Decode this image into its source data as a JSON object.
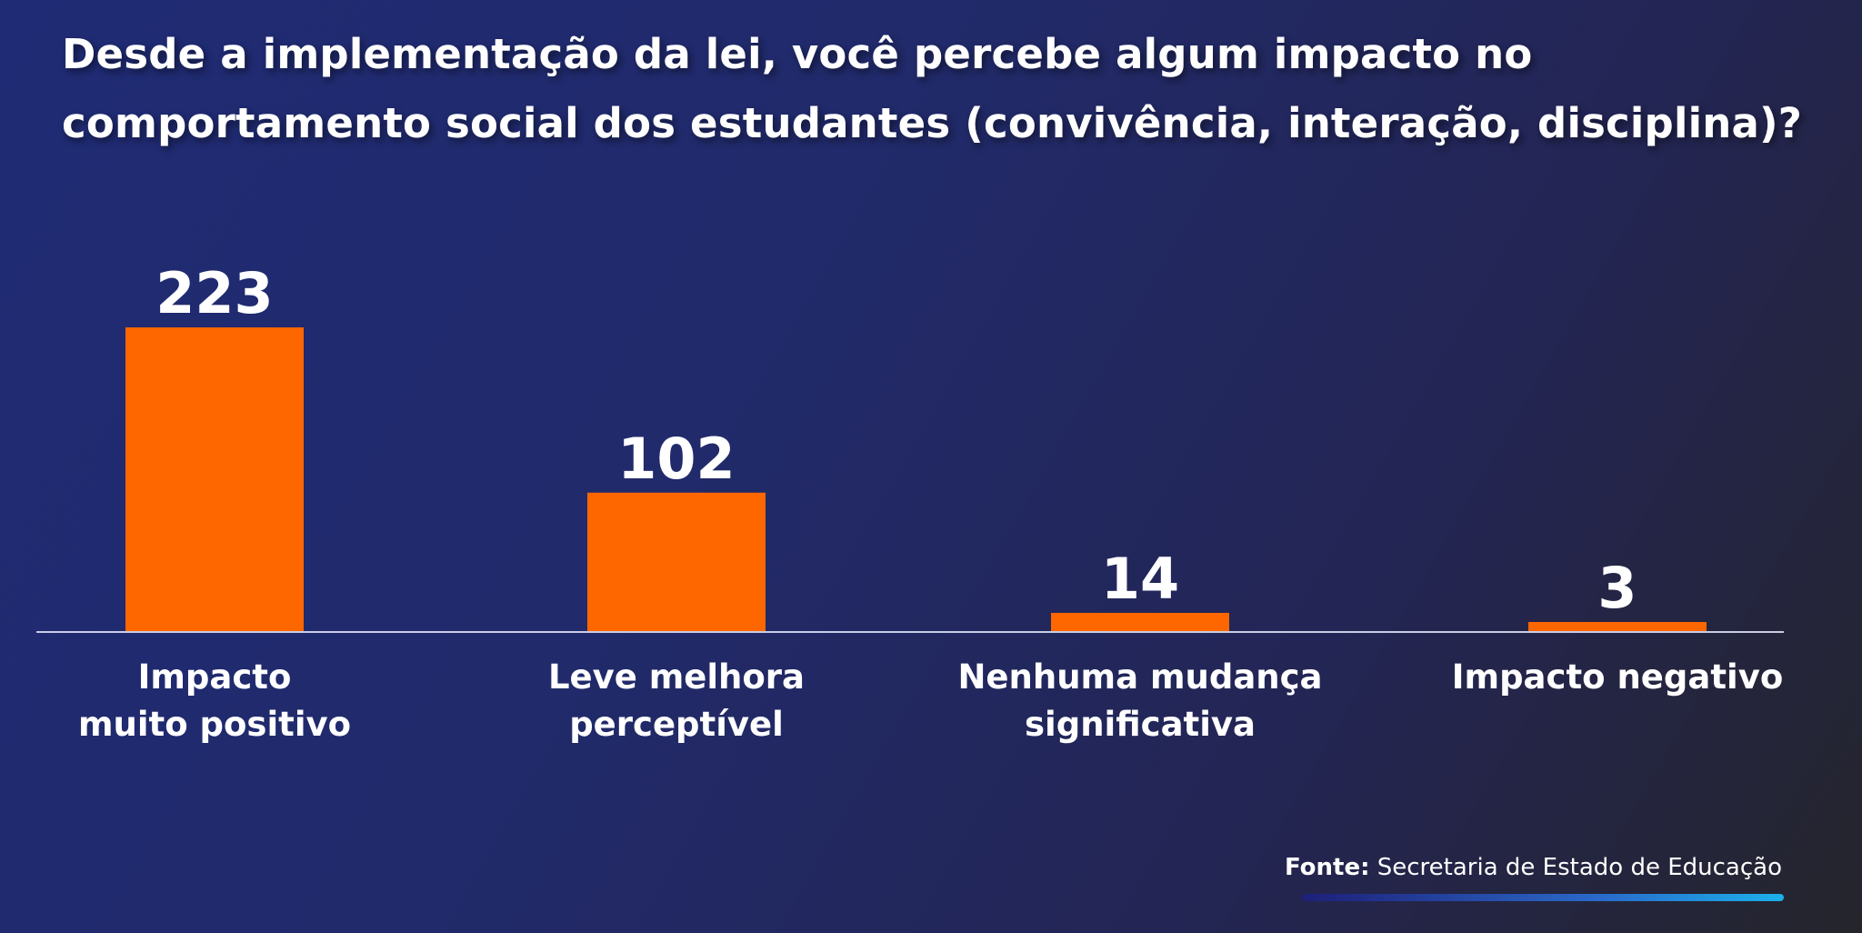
{
  "title": "Desde a implementação da lei, você percebe algum impacto no comportamento social dos estudantes (convivência, interação, disciplina)?",
  "source": {
    "label": "Fonte:",
    "text": "Secretaria de Estado de Educação"
  },
  "colors": {
    "bar": "#fe6600",
    "background": "#212a6a",
    "text": "#ffffff",
    "accent": "#1cb0ec"
  },
  "chart_data": {
    "type": "bar",
    "title": "Desde a implementação da lei, você percebe algum impacto no comportamento social dos estudantes (convivência, interação, disciplina)?",
    "categories": [
      [
        "Impacto",
        "muito positivo"
      ],
      [
        "Leve melhora",
        "perceptível"
      ],
      [
        "Nenhuma mudança",
        "significativa"
      ],
      [
        "Impacto negativo"
      ]
    ],
    "values": [
      223,
      102,
      14,
      3
    ],
    "value_labels": [
      "223",
      "102",
      "14",
      "3"
    ],
    "xlabel": "",
    "ylabel": "",
    "ylim": [
      0,
      223
    ],
    "grid": false,
    "legend": "none"
  }
}
